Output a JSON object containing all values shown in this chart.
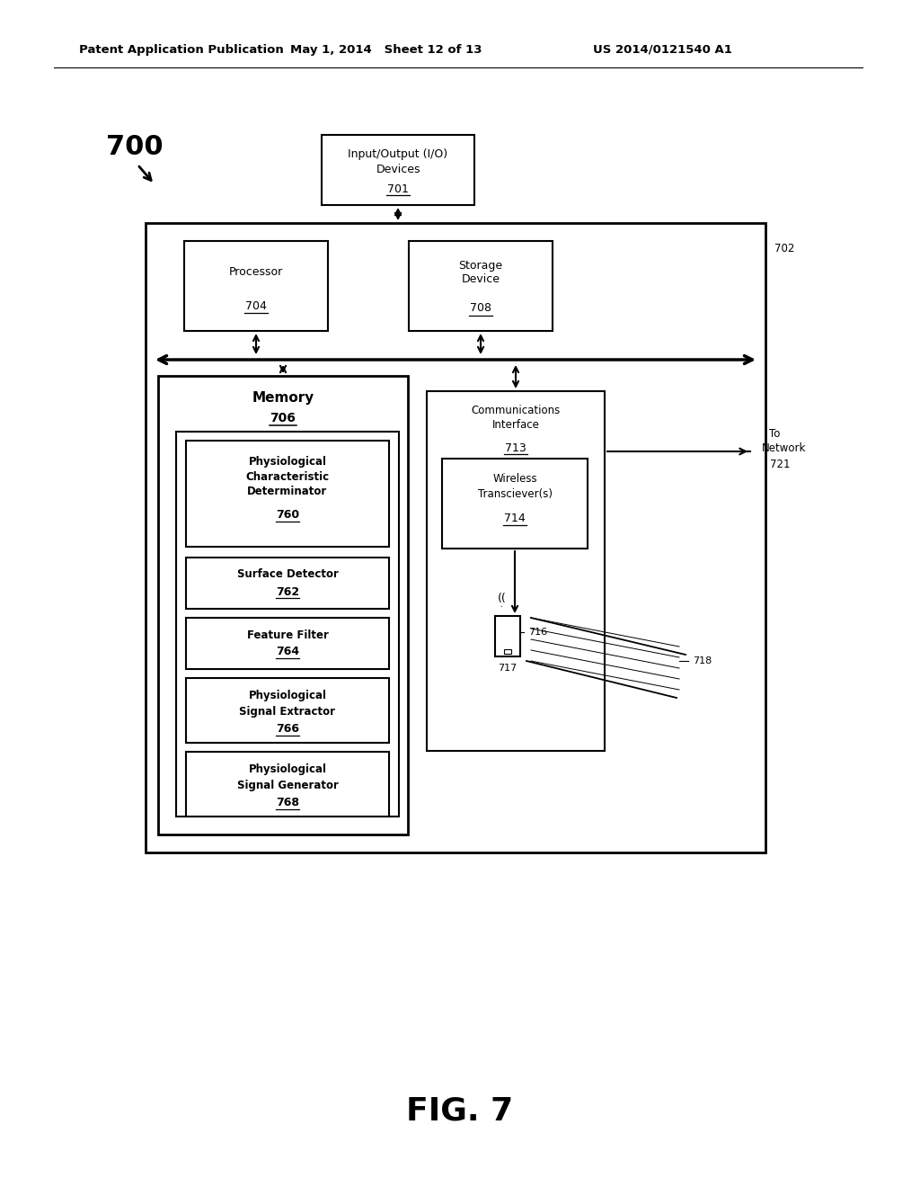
{
  "title": "FIG. 7",
  "header_left": "Patent Application Publication",
  "header_middle": "May 1, 2014   Sheet 12 of 13",
  "header_right": "US 2014/0121540 A1",
  "fig_label": "700",
  "background": "#ffffff"
}
